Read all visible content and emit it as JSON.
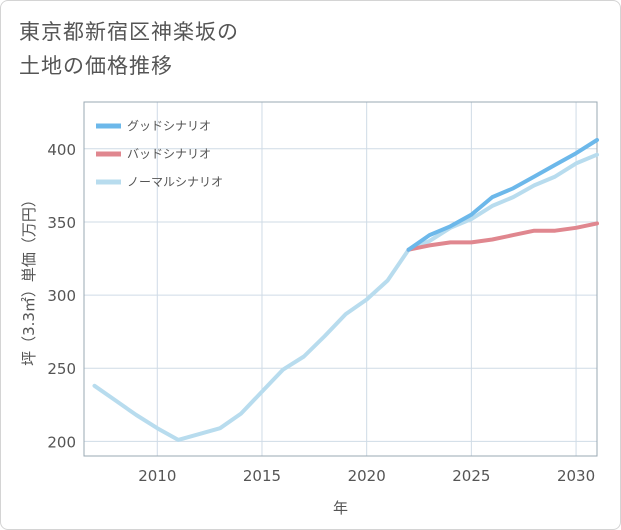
{
  "title": {
    "line1": "東京都新宿区神楽坂の",
    "line2": "土地の価格推移"
  },
  "chart_data": {
    "type": "line",
    "xlabel": "年",
    "ylabel": "坪（3.3㎡）単価（万円）",
    "xlim": [
      2006.5,
      2031
    ],
    "ylim": [
      190,
      432
    ],
    "xticks": [
      2010,
      2015,
      2020,
      2025,
      2030
    ],
    "yticks": [
      200,
      250,
      300,
      350,
      400
    ],
    "grid": true,
    "legend_position": "top-left",
    "series": [
      {
        "name": "グッドシナリオ",
        "color": "#6cb8ea",
        "x": [
          2022,
          2023,
          2024,
          2025,
          2026,
          2027,
          2028,
          2029,
          2030,
          2031
        ],
        "y": [
          331,
          341,
          347,
          355,
          367,
          373,
          381,
          389,
          397,
          406
        ]
      },
      {
        "name": "バッドシナリオ",
        "color": "#e0878f",
        "x": [
          2022,
          2023,
          2024,
          2025,
          2026,
          2027,
          2028,
          2029,
          2030,
          2031
        ],
        "y": [
          331,
          334,
          336,
          336,
          338,
          341,
          344,
          344,
          346,
          349
        ]
      },
      {
        "name": "ノーマルシナリオ",
        "color": "#b8dcee",
        "x": [
          2007,
          2008,
          2009,
          2010,
          2011,
          2012,
          2013,
          2014,
          2015,
          2016,
          2017,
          2018,
          2019,
          2020,
          2021,
          2022,
          2023,
          2024,
          2025,
          2026,
          2027,
          2028,
          2029,
          2030,
          2031
        ],
        "y": [
          238,
          228,
          218,
          209,
          201,
          205,
          209,
          219,
          234,
          249,
          258,
          272,
          287,
          297,
          310,
          331,
          337,
          346,
          352,
          361,
          367,
          375,
          381,
          390,
          396
        ]
      }
    ]
  }
}
